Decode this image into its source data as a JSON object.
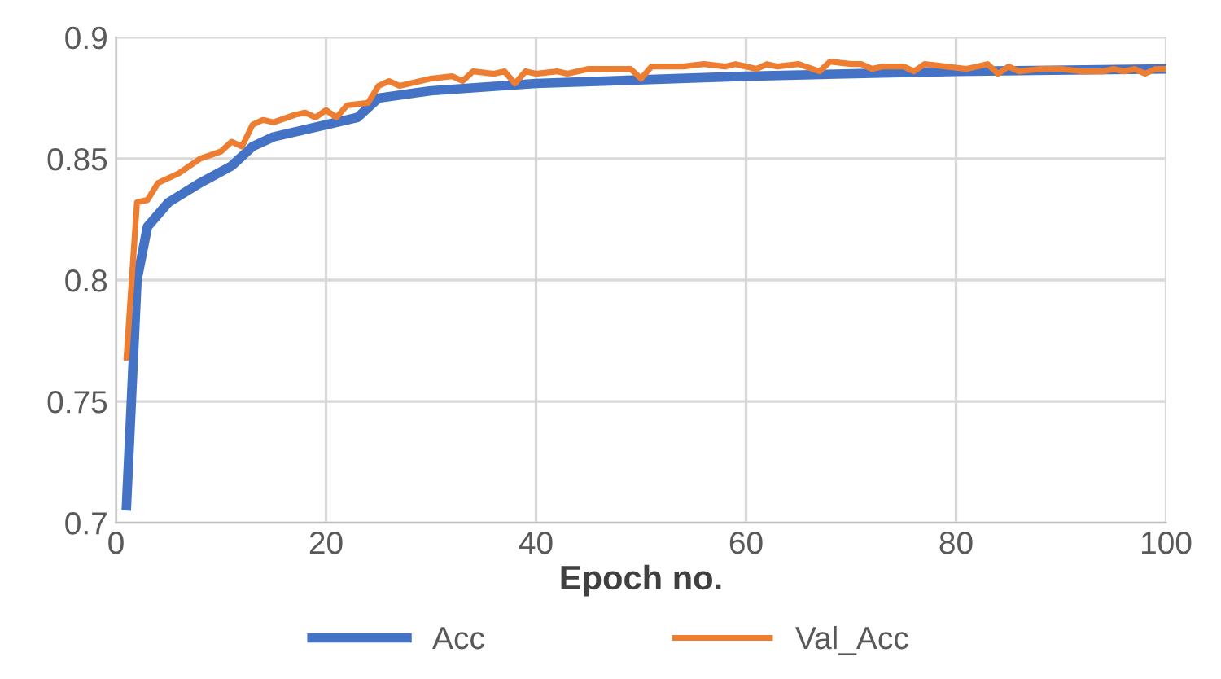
{
  "chart_data": {
    "type": "line",
    "xlabel": "Epoch no.",
    "xlim": [
      0,
      100
    ],
    "xticks": [
      0,
      20,
      40,
      60,
      80,
      100
    ],
    "ylim": [
      0.7,
      0.9
    ],
    "yticks": [
      0.7,
      0.75,
      0.8,
      0.85,
      0.9
    ],
    "grid": true,
    "legend": "bottom",
    "marker": "none",
    "line_style": "solid",
    "series": [
      {
        "name": "Acc",
        "color": "#4472c4",
        "x": [
          1,
          2,
          3,
          5,
          8,
          11,
          13,
          15,
          20,
          23,
          25,
          30,
          40,
          60,
          80,
          100
        ],
        "values": [
          0.707,
          0.8,
          0.822,
          0.832,
          0.84,
          0.847,
          0.855,
          0.859,
          0.864,
          0.867,
          0.875,
          0.878,
          0.881,
          0.884,
          0.886,
          0.887
        ]
      },
      {
        "name": "Val_Acc",
        "color": "#ed7d31",
        "x": [
          1,
          2,
          3,
          4,
          6,
          8,
          10,
          11,
          12,
          13,
          14,
          15,
          17,
          18,
          19,
          20,
          21,
          22,
          24,
          25,
          26,
          27,
          30,
          32,
          33,
          34,
          36,
          37,
          38,
          39,
          40,
          42,
          43,
          45,
          47,
          49,
          50,
          51,
          54,
          56,
          58,
          59,
          61,
          62,
          63,
          65,
          67,
          68,
          70,
          71,
          72,
          73,
          75,
          76,
          77,
          79,
          81,
          82,
          83,
          84,
          85,
          86,
          88,
          90,
          92,
          94,
          95,
          96,
          97,
          98,
          99,
          100
        ],
        "values": [
          0.768,
          0.832,
          0.833,
          0.84,
          0.844,
          0.85,
          0.853,
          0.857,
          0.855,
          0.864,
          0.866,
          0.865,
          0.868,
          0.869,
          0.867,
          0.87,
          0.867,
          0.872,
          0.873,
          0.88,
          0.882,
          0.88,
          0.883,
          0.884,
          0.882,
          0.886,
          0.885,
          0.886,
          0.881,
          0.886,
          0.885,
          0.886,
          0.885,
          0.887,
          0.887,
          0.887,
          0.883,
          0.888,
          0.888,
          0.889,
          0.888,
          0.889,
          0.887,
          0.889,
          0.888,
          0.889,
          0.886,
          0.89,
          0.889,
          0.889,
          0.887,
          0.888,
          0.888,
          0.886,
          0.889,
          0.888,
          0.887,
          0.888,
          0.889,
          0.885,
          0.888,
          0.886,
          0.887,
          0.887,
          0.886,
          0.886,
          0.887,
          0.886,
          0.887,
          0.885,
          0.887,
          0.887
        ]
      }
    ]
  }
}
